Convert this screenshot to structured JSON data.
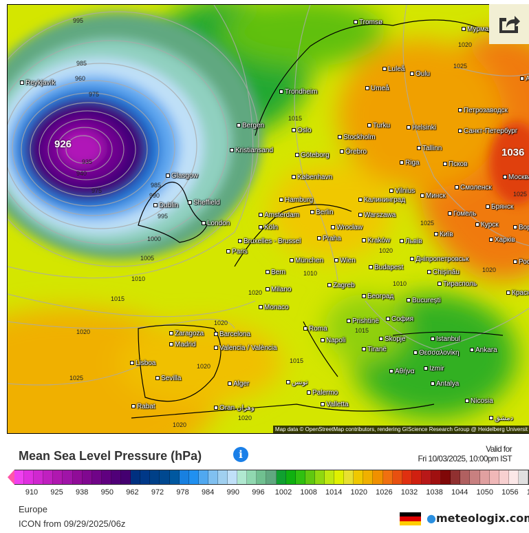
{
  "map": {
    "attribution": "Map data © OpenStreetMap contributors, rendering GIScience Research Group @ Heidelberg Universit",
    "share_icon": "share-icon",
    "low_center_label": "926",
    "high_center_label": "1036",
    "isobar_labels": [
      "995",
      "985",
      "960",
      "975",
      "935",
      "940",
      "975",
      "985",
      "990",
      "995",
      "1000",
      "1005",
      "1010",
      "1015",
      "1020",
      "1025",
      "1015",
      "1020",
      "1025",
      "1020",
      "1010",
      "1015",
      "1020",
      "1020",
      "1020",
      "1010",
      "1015",
      "1020",
      "1025",
      "1025",
      "1020",
      "1020"
    ],
    "cities": [
      "Reykjavík",
      "Tromsø",
      "Мурманск",
      "Luleå",
      "Oulu",
      "Umeå",
      "Архангельск",
      "Trondheim",
      "Петрозаводск",
      "Bergen",
      "Oslo",
      "Turku",
      "Helsinki",
      "Санкт-Петербург",
      "Kristiansand",
      "Stockholm",
      "Örebro",
      "Tallinn",
      "Göteborg",
      "Riga",
      "Псков",
      "Москва",
      "København",
      "Vilnius",
      "Минск",
      "Смоленск",
      "Glasgow",
      "Калининград",
      "Брянск",
      "Dublin",
      "Sheffield",
      "Hamburg",
      "Berlin",
      "Warszawa",
      "Гомель",
      "Курск",
      "Amsterdam",
      "London",
      "Köln",
      "Wrocław",
      "Воронеж",
      "Bruxelles - Brussel",
      "Praha",
      "Kraków",
      "Київ",
      "Харків",
      "Львів",
      "Paris",
      "München",
      "Wien",
      "Budapest",
      "Дніпропетровськ",
      "Ростов",
      "Bern",
      "Zagreb",
      "Chișinău",
      "Тирасполь",
      "Milano",
      "Београд",
      "București",
      "Краснодар",
      "Monaco",
      "Zaragoza",
      "Barcelona",
      "Roma",
      "Prishtinë",
      "София",
      "Madrid",
      "Napoli",
      "Skopje",
      "Istanbul",
      "Ankara",
      "Valencia / València",
      "Tiranë",
      "Θεσσαλονίκη",
      "Lisboa",
      "Izmir",
      "Sevilla",
      "Αθήνα",
      "Alger",
      "تونس",
      "Palermo",
      "Antalya",
      "Rabat",
      "Oran وهران",
      "Valletta",
      "Nicosia",
      "دمشق"
    ]
  },
  "legend": {
    "title": "Mean Sea Level Pressure (hPa)",
    "info_icon": "info-icon",
    "info_glyph": "i",
    "valid_label": "Valid for",
    "valid_time": "Fri 10/03/2025, 10:00pm IST",
    "ticks": [
      "910",
      "925",
      "938",
      "950",
      "962",
      "972",
      "978",
      "984",
      "990",
      "996",
      "1002",
      "1008",
      "1014",
      "1020",
      "1026",
      "1032",
      "1038",
      "1044",
      "1050",
      "1056",
      "1062"
    ],
    "colors": [
      "#f040f0",
      "#e030e0",
      "#d028d0",
      "#c020c0",
      "#b018b0",
      "#a014a8",
      "#900c98",
      "#800890",
      "#700488",
      "#600080",
      "#500078",
      "#440070",
      "#003080",
      "#003888",
      "#004088",
      "#004890",
      "#0058a0",
      "#1880e0",
      "#2090f0",
      "#50a8f0",
      "#80c0f0",
      "#a0d0f0",
      "#c0e0f8",
      "#b0e8d0",
      "#90d8b0",
      "#70c090",
      "#60a880",
      "#10a030",
      "#10b010",
      "#30c010",
      "#60c810",
      "#90d810",
      "#c0e810",
      "#e0f000",
      "#e8e030",
      "#f0c800",
      "#f0b000",
      "#f09000",
      "#f07010",
      "#e85010",
      "#e03010",
      "#d02010",
      "#b81818",
      "#a01010",
      "#800808",
      "#903030",
      "#b06060",
      "#c88080",
      "#e0a0a0",
      "#f0b8b8",
      "#f8d0d0",
      "#fce8e8",
      "#e0e0e0"
    ]
  },
  "footer": {
    "region": "Europe",
    "model": "ICON from 09/29/2025/06z",
    "brand": "meteologix.com",
    "flag_colors": [
      "#000000",
      "#dd0000",
      "#ffce00"
    ]
  }
}
